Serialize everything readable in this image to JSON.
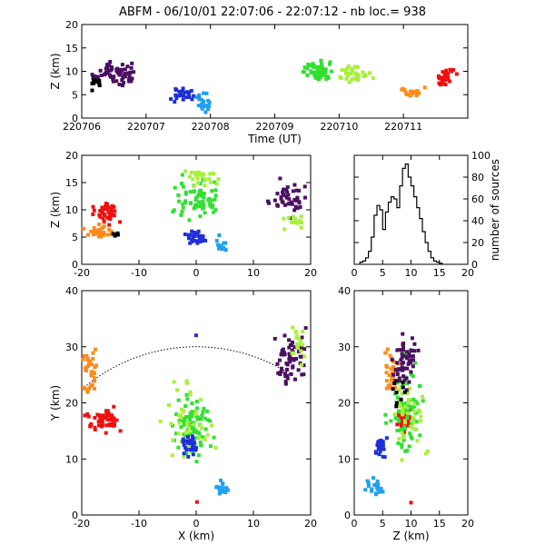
{
  "header": {
    "title": "ABFM - 06/10/01 22:07:06 - 22:07:12 - nb loc.=    938"
  },
  "colors": {
    "scale": [
      "#000000",
      "#3a0a40",
      "#4b1060",
      "#5a1a78",
      "#1f2fd8",
      "#1e64e8",
      "#1fa0f0",
      "#30e030",
      "#6ef030",
      "#a8f03a",
      "#ff8a1a",
      "#ff5010",
      "#ee1010"
    ]
  },
  "chart_data": [
    {
      "id": "time-height",
      "type": "scatter",
      "xlabel": "Time (UT)",
      "ylabel": "Z (km)",
      "xlim": [
        0,
        6
      ],
      "ylim": [
        0,
        20
      ],
      "x_ticks": [
        0,
        1,
        2,
        3,
        4,
        5
      ],
      "x_tick_labels": [
        "220706",
        "220707",
        "220708",
        "220709",
        "220710",
        "220711"
      ],
      "y_ticks": [
        0,
        5,
        10,
        15,
        20
      ],
      "clusters": [
        {
          "color": "#000000",
          "x": [
            0.05,
            0.35
          ],
          "y": [
            5,
            10
          ],
          "n": 14,
          "seed": 1
        },
        {
          "color": "#4b1060",
          "x": [
            0.1,
            1.0
          ],
          "y": [
            6,
            13
          ],
          "n": 60,
          "seed": 2
        },
        {
          "color": "#1f2fd8",
          "x": [
            1.35,
            1.85
          ],
          "y": [
            3,
            7
          ],
          "n": 25,
          "seed": 3
        },
        {
          "color": "#1fa0f0",
          "x": [
            1.7,
            2.1
          ],
          "y": [
            0.5,
            6.5
          ],
          "n": 22,
          "seed": 4
        },
        {
          "color": "#30e030",
          "x": [
            3.3,
            4.0
          ],
          "y": [
            7,
            13
          ],
          "n": 55,
          "seed": 5
        },
        {
          "color": "#a8f03a",
          "x": [
            3.9,
            4.6
          ],
          "y": [
            7,
            12
          ],
          "n": 35,
          "seed": 6
        },
        {
          "color": "#ff8a1a",
          "x": [
            4.9,
            5.4
          ],
          "y": [
            4,
            7
          ],
          "n": 18,
          "seed": 7
        },
        {
          "color": "#ee1010",
          "x": [
            5.4,
            5.9
          ],
          "y": [
            6,
            11
          ],
          "n": 30,
          "seed": 8
        }
      ]
    },
    {
      "id": "x-height",
      "type": "scatter",
      "xlabel": "",
      "ylabel": "Z (km)",
      "xlim": [
        -20,
        20
      ],
      "ylim": [
        0,
        20
      ],
      "x_ticks": [
        -20,
        -10,
        0,
        10,
        20
      ],
      "y_ticks": [
        0,
        5,
        10,
        15,
        20
      ],
      "clusters": [
        {
          "color": "#ee1010",
          "x": [
            -19,
            -12
          ],
          "y": [
            7,
            12
          ],
          "n": 40,
          "seed": 11
        },
        {
          "color": "#ff8a1a",
          "x": [
            -20,
            -14
          ],
          "y": [
            4,
            8
          ],
          "n": 30,
          "seed": 12
        },
        {
          "color": "#000000",
          "x": [
            -15,
            -13
          ],
          "y": [
            5,
            6
          ],
          "n": 5,
          "seed": 13
        },
        {
          "color": "#30e030",
          "x": [
            -6,
            6
          ],
          "y": [
            7,
            17
          ],
          "n": 70,
          "seed": 14
        },
        {
          "color": "#a8f03a",
          "x": [
            -3,
            5
          ],
          "y": [
            14,
            18
          ],
          "n": 25,
          "seed": 15
        },
        {
          "color": "#1f2fd8",
          "x": [
            -3,
            3
          ],
          "y": [
            3,
            7
          ],
          "n": 30,
          "seed": 16
        },
        {
          "color": "#1fa0f0",
          "x": [
            3,
            6
          ],
          "y": [
            1,
            6
          ],
          "n": 14,
          "seed": 17
        },
        {
          "color": "#4b1060",
          "x": [
            12,
            20
          ],
          "y": [
            7,
            17
          ],
          "n": 45,
          "seed": 18
        },
        {
          "color": "#a8f03a",
          "x": [
            14,
            20
          ],
          "y": [
            6,
            10
          ],
          "n": 15,
          "seed": 19
        }
      ]
    },
    {
      "id": "histogram",
      "type": "bar",
      "xlabel": "",
      "ylabel": "number of sources",
      "xlim": [
        0,
        20
      ],
      "ylim": [
        0,
        100
      ],
      "x_ticks": [
        0,
        5,
        10,
        15,
        20
      ],
      "y_ticks": [
        0,
        20,
        40,
        60,
        80,
        100
      ],
      "bin_width": 0.5,
      "bin_start": 1.0,
      "counts": [
        2,
        3,
        6,
        12,
        25,
        45,
        54,
        50,
        32,
        48,
        57,
        62,
        60,
        52,
        72,
        88,
        92,
        80,
        72,
        62,
        52,
        42,
        30,
        20,
        12,
        6,
        3,
        2,
        1
      ]
    },
    {
      "id": "plan-view",
      "type": "scatter",
      "xlabel": "X (km)",
      "ylabel": "Y (km)",
      "xlim": [
        -20,
        20
      ],
      "ylim": [
        0,
        40
      ],
      "x_ticks": [
        -20,
        -10,
        0,
        10,
        20
      ],
      "y_ticks": [
        0,
        10,
        20,
        30,
        40
      ],
      "range_ring": {
        "radius": 30,
        "from": -20,
        "to": 17
      },
      "clusters": [
        {
          "color": "#ff8a1a",
          "x": [
            -20,
            -17
          ],
          "y": [
            20,
            31
          ],
          "n": 35,
          "seed": 21
        },
        {
          "color": "#ee1010",
          "x": [
            -20,
            -12
          ],
          "y": [
            14,
            20
          ],
          "n": 50,
          "seed": 22
        },
        {
          "color": "#30e030",
          "x": [
            -5,
            4
          ],
          "y": [
            8,
            24
          ],
          "n": 80,
          "seed": 23
        },
        {
          "color": "#a8f03a",
          "x": [
            -8,
            5
          ],
          "y": [
            6,
            27
          ],
          "n": 40,
          "seed": 24
        },
        {
          "color": "#1f2fd8",
          "x": [
            -3,
            1
          ],
          "y": [
            10,
            15
          ],
          "n": 30,
          "seed": 25
        },
        {
          "color": "#1fa0f0",
          "x": [
            3,
            6
          ],
          "y": [
            3,
            7
          ],
          "n": 16,
          "seed": 26
        },
        {
          "color": "#4b1060",
          "x": [
            13,
            20
          ],
          "y": [
            21,
            34
          ],
          "n": 60,
          "seed": 27
        },
        {
          "color": "#a8f03a",
          "x": [
            16,
            20
          ],
          "y": [
            26,
            36
          ],
          "n": 20,
          "seed": 28
        },
        {
          "color": "#ee1010",
          "x": [
            -0.2,
            0.2
          ],
          "y": [
            2,
            2.5
          ],
          "n": 1,
          "seed": 29
        },
        {
          "color": "#1f2fd8",
          "x": [
            -0.2,
            0.2
          ],
          "y": [
            31.8,
            32.3
          ],
          "n": 1,
          "seed": 30
        }
      ]
    },
    {
      "id": "z-y",
      "type": "scatter",
      "xlabel": "Z (km)",
      "ylabel": "",
      "xlim": [
        0,
        20
      ],
      "ylim": [
        0,
        40
      ],
      "x_ticks": [
        0,
        5,
        10,
        15,
        20
      ],
      "y_ticks": [
        0,
        10,
        20,
        30,
        40
      ],
      "clusters": [
        {
          "color": "#1fa0f0",
          "x": [
            1,
            6
          ],
          "y": [
            3,
            7
          ],
          "n": 20,
          "seed": 31
        },
        {
          "color": "#1f2fd8",
          "x": [
            3.5,
            6
          ],
          "y": [
            10,
            15
          ],
          "n": 25,
          "seed": 32
        },
        {
          "color": "#ff8a1a",
          "x": [
            5,
            8
          ],
          "y": [
            20,
            31
          ],
          "n": 30,
          "seed": 33
        },
        {
          "color": "#ee1010",
          "x": [
            7,
            11
          ],
          "y": [
            14,
            20
          ],
          "n": 40,
          "seed": 34
        },
        {
          "color": "#30e030",
          "x": [
            5,
            13
          ],
          "y": [
            8,
            30
          ],
          "n": 70,
          "seed": 35
        },
        {
          "color": "#a8f03a",
          "x": [
            5,
            14
          ],
          "y": [
            6,
            28
          ],
          "n": 40,
          "seed": 36
        },
        {
          "color": "#4b1060",
          "x": [
            6,
            12
          ],
          "y": [
            21,
            34
          ],
          "n": 55,
          "seed": 37
        },
        {
          "color": "#000000",
          "x": [
            5,
            10
          ],
          "y": [
            17,
            27
          ],
          "n": 10,
          "seed": 38
        },
        {
          "color": "#ee1010",
          "x": [
            9.9,
            10.2
          ],
          "y": [
            2,
            2.5
          ],
          "n": 1,
          "seed": 39
        }
      ]
    }
  ]
}
